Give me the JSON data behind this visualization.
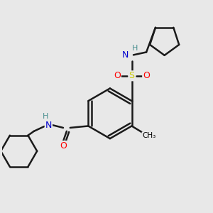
{
  "bg_color": "#e8e8e8",
  "atom_colors": {
    "C": "#000000",
    "N": "#0000cd",
    "O": "#ff0000",
    "S": "#cccc00",
    "H": "#4a9090"
  },
  "bond_color": "#1a1a1a",
  "bond_width": 1.8,
  "figsize": [
    3.0,
    3.0
  ],
  "dpi": 100,
  "xlim": [
    -1.5,
    4.5
  ],
  "ylim": [
    -1.8,
    4.2
  ]
}
